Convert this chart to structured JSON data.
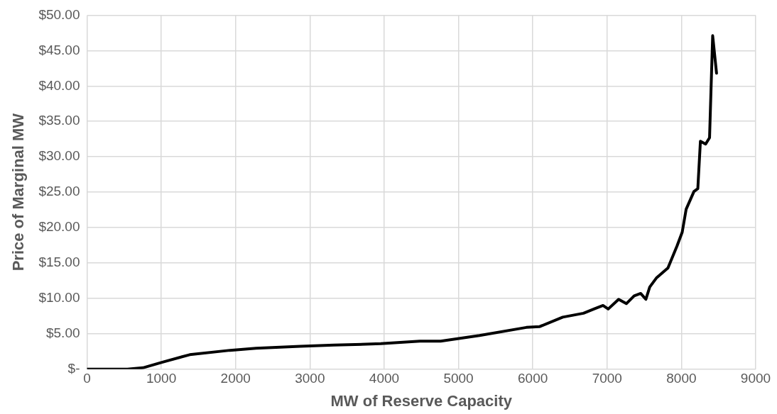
{
  "chart_data": {
    "type": "line",
    "xlabel": "MW of Reserve Capacity",
    "ylabel": "Price of Marginal MW",
    "series": [
      {
        "color": "#000000",
        "x": [
          0,
          544,
          752,
          1016,
          1383,
          1925,
          2275,
          2870,
          3324,
          3954,
          4479,
          4759,
          5283,
          5913,
          6088,
          6403,
          6682,
          6823,
          6945,
          7015,
          7155,
          7259,
          7364,
          7452,
          7522,
          7574,
          7662,
          7819,
          7941,
          8011,
          8064,
          8169,
          8221,
          8256,
          8326,
          8379,
          8421,
          8473
        ],
        "values": [
          0,
          0,
          0.2,
          1.0,
          2.05,
          2.67,
          2.95,
          3.24,
          3.4,
          3.6,
          3.95,
          3.97,
          4.76,
          5.9,
          6.0,
          7.35,
          7.9,
          8.5,
          9.0,
          8.5,
          9.87,
          9.26,
          10.35,
          10.7,
          9.87,
          11.6,
          12.86,
          14.3,
          17.4,
          19.35,
          22.6,
          25.1,
          25.5,
          32.2,
          31.8,
          32.7,
          47.1,
          41.8
        ]
      }
    ],
    "xlim": [
      0,
      9000
    ],
    "xticks": [
      0,
      1000,
      2000,
      3000,
      4000,
      5000,
      6000,
      7000,
      8000,
      9000
    ],
    "ylim": [
      0,
      50
    ],
    "yticks": [
      {
        "value": 0,
        "label": "$-"
      },
      {
        "value": 5,
        "label": "$5.00"
      },
      {
        "value": 10,
        "label": "$10.00"
      },
      {
        "value": 15,
        "label": "$15.00"
      },
      {
        "value": 20,
        "label": "$20.00"
      },
      {
        "value": 25,
        "label": "$25.00"
      },
      {
        "value": 30,
        "label": "$30.00"
      },
      {
        "value": 35,
        "label": "$35.00"
      },
      {
        "value": 40,
        "label": "$40.00"
      },
      {
        "value": 45,
        "label": "$45.00"
      },
      {
        "value": 50,
        "label": "$50.00"
      }
    ],
    "grid": true,
    "legend": false,
    "marker": "none",
    "line_style": "solid"
  }
}
